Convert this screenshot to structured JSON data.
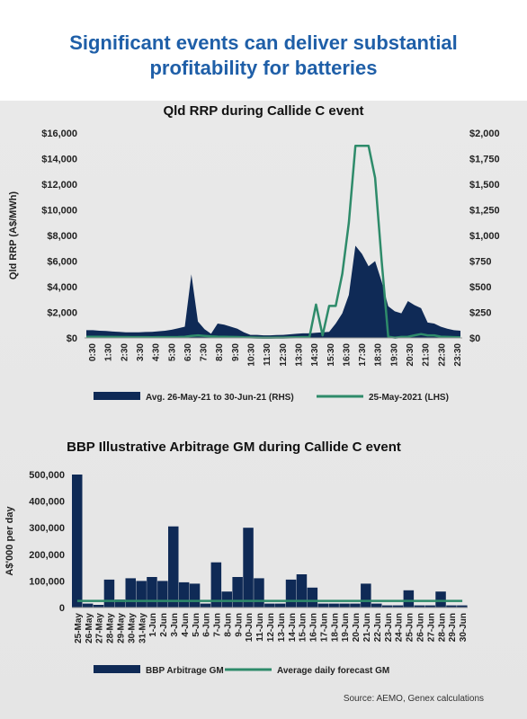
{
  "headline": {
    "line1": "Significant events can  deliver substantial",
    "line2": "profitability for batteries"
  },
  "source": "Source: AEMO, Genex calculations",
  "colors": {
    "navy": "#0f2a56",
    "green": "#2e8b6a",
    "headline": "#1f5fa8"
  },
  "chart_data": [
    {
      "type": "area+line",
      "title": "Qld RRP during Callide C event",
      "ylabel": "Qld RRP (A$/MWh)",
      "ylim_left": [
        0,
        16000
      ],
      "ylim_right": [
        0,
        2000
      ],
      "yticks_left": [
        "$0",
        "$2,000",
        "$4,000",
        "$6,000",
        "$8,000",
        "$10,000",
        "$12,000",
        "$14,000",
        "$16,000"
      ],
      "yticks_right": [
        "$0",
        "$250",
        "$500",
        "$750",
        "$1,000",
        "$1,250",
        "$1,500",
        "$1,750",
        "$2,000"
      ],
      "xticks": [
        "0:30",
        "1:30",
        "2:30",
        "3:30",
        "4:30",
        "5:30",
        "6:30",
        "7:30",
        "8:30",
        "9:30",
        "10:30",
        "11:30",
        "12:30",
        "13:30",
        "14:30",
        "15:30",
        "16:30",
        "17:30",
        "18:30",
        "19:30",
        "20:30",
        "21:30",
        "22:30",
        "23:30"
      ],
      "series": [
        {
          "name": "Avg. 26-May-21 to 30-Jun-21 (RHS)",
          "kind": "area",
          "axis": "right",
          "color": "#0f2a56",
          "values": [
            75,
            75,
            70,
            68,
            62,
            60,
            55,
            55,
            55,
            58,
            60,
            65,
            70,
            80,
            95,
            110,
            620,
            160,
            85,
            40,
            140,
            130,
            110,
            90,
            55,
            30,
            30,
            25,
            25,
            28,
            30,
            35,
            40,
            45,
            45,
            50,
            55,
            60,
            140,
            240,
            420,
            900,
            820,
            700,
            750,
            550,
            310,
            260,
            240,
            360,
            320,
            290,
            150,
            140,
            110,
            90,
            75,
            70
          ]
        },
        {
          "name": "25-May-2021 (LHS)",
          "kind": "line",
          "axis": "left",
          "color": "#2e8b6a",
          "values": [
            90,
            90,
            85,
            80,
            75,
            70,
            68,
            65,
            62,
            60,
            58,
            60,
            62,
            65,
            70,
            90,
            160,
            200,
            160,
            120,
            100,
            90,
            80,
            70,
            50,
            40,
            30,
            20,
            20,
            25,
            30,
            40,
            50,
            60,
            70,
            2600,
            200,
            2500,
            2500,
            5000,
            9000,
            15000,
            15000,
            15000,
            12500,
            6000,
            100,
            20,
            80,
            90,
            200,
            300,
            200,
            200,
            100,
            80,
            60,
            50
          ]
        }
      ],
      "legend_position": "bottom"
    },
    {
      "type": "bar+line",
      "title": "BBP Illustrative Arbitrage GM during Callide C event",
      "ylabel": "A$'000 per day",
      "ylim": [
        0,
        500000
      ],
      "yticks": [
        "0",
        "100,000",
        "200,000",
        "300,000",
        "400,000",
        "500,000"
      ],
      "categories": [
        "25-May",
        "26-May",
        "27-May",
        "28-May",
        "29-May",
        "30-May",
        "31-May",
        "1-Jun",
        "2-Jun",
        "3-Jun",
        "4-Jun",
        "5-Jun",
        "6-Jun",
        "7-Jun",
        "8-Jun",
        "9-Jun",
        "10-Jun",
        "11-Jun",
        "12-Jun",
        "13-Jun",
        "14-Jun",
        "15-Jun",
        "16-Jun",
        "17-Jun",
        "18-Jun",
        "19-Jun",
        "20-Jun",
        "21-Jun",
        "22-Jun",
        "23-Jun",
        "24-Jun",
        "25-Jun",
        "26-Jun",
        "27-Jun",
        "28-Jun",
        "29-Jun",
        "30-Jun"
      ],
      "xticks": [
        "25-May",
        "26-May",
        "27-May",
        "28-May",
        "29-May",
        "30-May",
        "31-May",
        "1-Jun",
        "2-Jun",
        "3-Jun",
        "4-Jun",
        "5-Jun",
        "6-Jun",
        "7-Jun",
        "8-Jun",
        "9-Jun",
        "10-Jun",
        "11-Jun",
        "12-Jun",
        "13-Jun",
        "14-Jun",
        "15-Jun",
        "16-Jun",
        "17-Jun",
        "18-Jun",
        "19-Jun",
        "20-Jun",
        "21-Jun",
        "22-Jun",
        "23-Jun",
        "24-Jun",
        "25-Jun",
        "26-Jun",
        "27-Jun",
        "28-Jun",
        "29-Jun",
        "30-Jun"
      ],
      "series": [
        {
          "name": "BBP Arbitrage GM",
          "kind": "bar",
          "color": "#0f2a56",
          "values": [
            500000,
            15000,
            10000,
            105000,
            30000,
            110000,
            100000,
            115000,
            100000,
            305000,
            95000,
            90000,
            15000,
            170000,
            60000,
            115000,
            300000,
            110000,
            15000,
            15000,
            105000,
            125000,
            75000,
            15000,
            15000,
            15000,
            15000,
            90000,
            15000,
            8000,
            8000,
            65000,
            8000,
            8000,
            60000,
            8000,
            8000
          ]
        },
        {
          "name": "Average daily forecast GM",
          "kind": "line",
          "color": "#2e8b6a",
          "values": [
            25000,
            25000,
            25000,
            25000,
            25000,
            25000,
            25000,
            25000,
            25000,
            25000,
            25000,
            25000,
            25000,
            25000,
            25000,
            25000,
            25000,
            25000,
            25000,
            25000,
            25000,
            25000,
            25000,
            25000,
            25000,
            25000,
            25000,
            25000,
            25000,
            25000,
            25000,
            25000,
            25000,
            25000,
            25000,
            25000,
            25000
          ]
        }
      ],
      "legend_position": "bottom"
    }
  ]
}
